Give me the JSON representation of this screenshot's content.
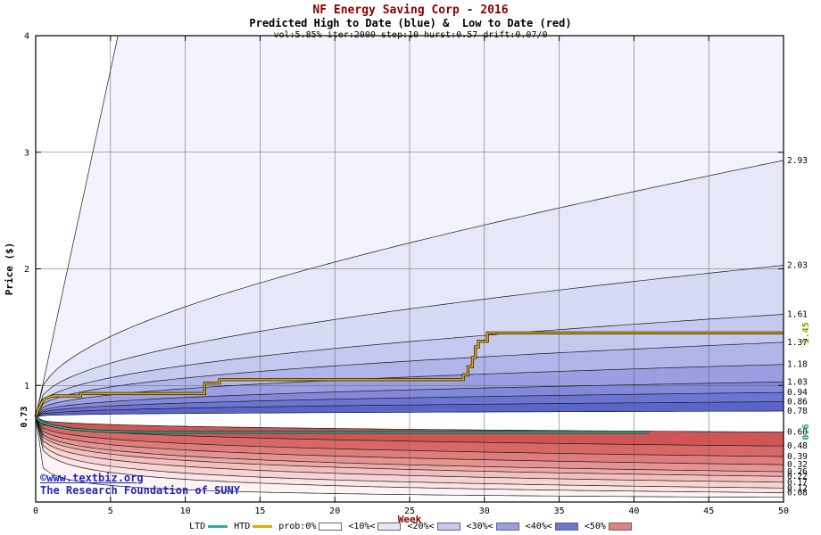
{
  "title": {
    "line1": "NF Energy Saving Corp - 2016",
    "line2": "Predicted High to Date (blue) &  Low to Date (red)",
    "line3": "vol:5.85% iter:2000 step:10 hurst:0.57 drift:0.07/0"
  },
  "watermark": {
    "line1": "©www.textbiz.org",
    "line2": "The Research Foundation of SUNY"
  },
  "legend": {
    "items": [
      {
        "label": "LTD",
        "type": "line",
        "color": "#2ab399"
      },
      {
        "label": "HTD",
        "type": "line",
        "color": "#e2a900"
      },
      {
        "label": "prob:0%",
        "type": "swatch",
        "color": "#ffffff"
      },
      {
        "label": "<10%<",
        "type": "swatch",
        "color": "#e6e8f9"
      },
      {
        "label": "<20%<",
        "type": "swatch",
        "color": "#c5c9f0"
      },
      {
        "label": "<30%<",
        "type": "swatch",
        "color": "#999fe2"
      },
      {
        "label": "<40%<",
        "type": "swatch",
        "color": "#6c75d2"
      },
      {
        "label": "<50%",
        "type": "swatch",
        "color": "#e08080"
      }
    ]
  },
  "chart_data": {
    "type": "area",
    "title": "NF Energy Saving Corp - 2016",
    "subtitle": "Predicted High to Date (blue) &  Low to Date (red)",
    "params": {
      "vol_pct": 5.85,
      "iter": 2000,
      "step": 10,
      "hurst": 0.57,
      "drift": "0.07/0"
    },
    "xlabel": "Week",
    "ylabel": "Price ($)",
    "xlim": [
      0,
      50
    ],
    "ylim": [
      0,
      4
    ],
    "xticks": [
      0,
      5,
      10,
      15,
      20,
      25,
      30,
      35,
      40,
      45,
      50
    ],
    "yticks": [
      1,
      2,
      3,
      4
    ],
    "grid": true,
    "start_price": 0.73,
    "start_price_label": "0.73",
    "shape_power": 0.32,
    "high_fan": {
      "outer_final": 4.0,
      "outer_reach_week": 5.5,
      "finals": [
        2.93,
        2.03,
        1.61,
        1.37,
        1.18,
        1.03,
        0.94,
        0.86,
        0.78
      ],
      "band_colors": [
        "#f2f3fc",
        "#e6e8f9",
        "#d7daf5",
        "#c5c9f0",
        "#b0b5ea",
        "#999fe2",
        "#8289da",
        "#6c75d2",
        "#5a64ca"
      ]
    },
    "low_fan": {
      "outer_final": 0.04,
      "outer_power": 0.25,
      "finals": [
        0.08,
        0.12,
        0.17,
        0.22,
        0.26,
        0.32,
        0.39,
        0.48,
        0.6
      ],
      "band_colors": [
        "#fdf3f2",
        "#fae5e4",
        "#f6d4d3",
        "#f1c0bf",
        "#ecaaa8",
        "#e59492",
        "#de7d7c",
        "#d76867",
        "#d05655"
      ]
    },
    "htd": {
      "name": "HTD (High to Date)",
      "color": "#e2a900",
      "end_value": 1.45,
      "end_label": "1.45",
      "end_label_color": "#8f9900",
      "points": [
        [
          0,
          0.73
        ],
        [
          0.2,
          0.8
        ],
        [
          0.5,
          0.875
        ],
        [
          0.9,
          0.9
        ],
        [
          1.2,
          0.91
        ],
        [
          3,
          0.91
        ],
        [
          3,
          0.93
        ],
        [
          11.3,
          0.93
        ],
        [
          11.3,
          1.02
        ],
        [
          12.3,
          1.02
        ],
        [
          12.3,
          1.05
        ],
        [
          28.6,
          1.05
        ],
        [
          28.6,
          1.09
        ],
        [
          28.9,
          1.09
        ],
        [
          28.9,
          1.16
        ],
        [
          29.2,
          1.16
        ],
        [
          29.2,
          1.24
        ],
        [
          29.4,
          1.24
        ],
        [
          29.4,
          1.33
        ],
        [
          29.6,
          1.33
        ],
        [
          29.6,
          1.38
        ],
        [
          30.2,
          1.38
        ],
        [
          30.2,
          1.45
        ],
        [
          50,
          1.45
        ]
      ]
    },
    "ltd": {
      "name": "LTD (Low to Date)",
      "color": "#2ab399",
      "end_value": 0.6,
      "end_label": "0.6",
      "end_label_color": "#009b82",
      "points": [
        [
          0,
          0.73
        ],
        [
          0.3,
          0.695
        ],
        [
          0.8,
          0.665
        ],
        [
          1.5,
          0.645
        ],
        [
          2.5,
          0.625
        ],
        [
          4,
          0.61
        ],
        [
          6,
          0.602
        ],
        [
          8,
          0.6
        ],
        [
          41,
          0.6
        ]
      ]
    }
  }
}
